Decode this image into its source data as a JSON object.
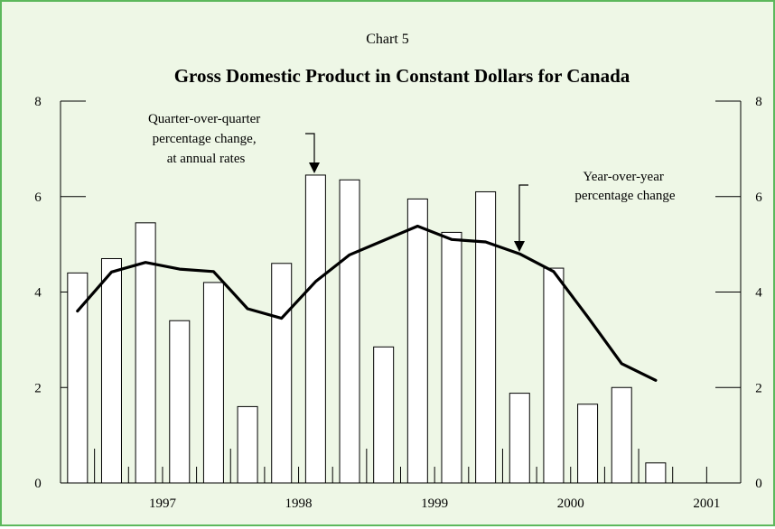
{
  "chart_data": {
    "type": "bar",
    "subtitle": "Chart 5",
    "title": "Gross Domestic Product in Constant Dollars for Canada",
    "x_ticks": [
      "1997",
      "1998",
      "1999",
      "2000",
      "2001"
    ],
    "ylim": [
      0,
      8
    ],
    "y_ticks": [
      "0",
      "2",
      "4",
      "6",
      "8"
    ],
    "quarters": [
      "1996Q4",
      "1997Q1",
      "1997Q2",
      "1997Q3",
      "1997Q4",
      "1998Q1",
      "1998Q2",
      "1998Q3",
      "1998Q4",
      "1999Q1",
      "1999Q2",
      "1999Q3",
      "1999Q4",
      "2000Q1",
      "2000Q2",
      "2000Q3",
      "2000Q4",
      "2001Q1",
      "2001Q2",
      "2001Q3"
    ],
    "series": [
      {
        "type": "bar",
        "values": [
          4.4,
          4.7,
          5.45,
          3.4,
          4.2,
          1.6,
          4.6,
          6.45,
          6.35,
          2.85,
          5.95,
          5.25,
          6.1,
          1.88,
          4.5,
          1.65,
          2.0,
          0.42,
          null,
          null
        ]
      },
      {
        "type": "line",
        "values": [
          3.6,
          4.42,
          4.62,
          4.48,
          4.43,
          3.65,
          3.45,
          4.22,
          4.78,
          5.08,
          5.38,
          5.1,
          5.05,
          4.8,
          4.43,
          3.48,
          2.5,
          2.15,
          null,
          null
        ]
      }
    ],
    "annotations": [
      {
        "lines": [
          "Quarter-over-quarter",
          "percentage change,",
          "at annual rates"
        ]
      },
      {
        "lines": [
          "Year-over-year",
          "percentage change"
        ]
      }
    ]
  }
}
